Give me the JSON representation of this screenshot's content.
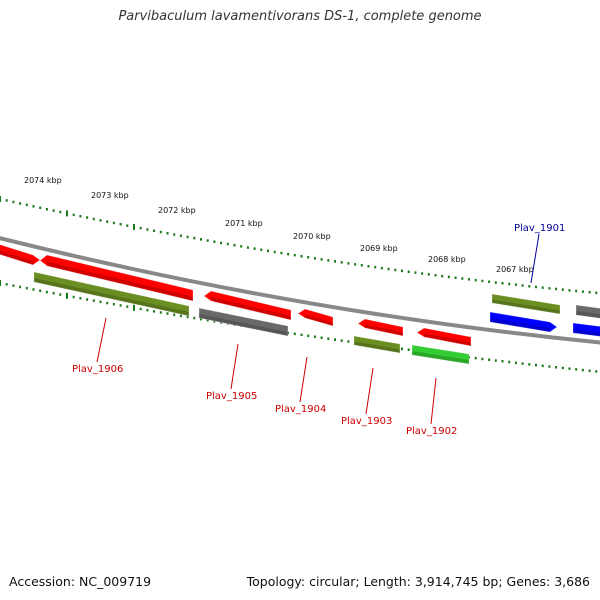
{
  "header": {
    "title": "Parvibaculum lavamentivorans DS-1, complete genome"
  },
  "footer": {
    "accession": "Accession: NC_009719",
    "summary": "Topology: circular; Length: 3,914,745 bp; Genes: 3,686"
  },
  "colors": {
    "red_gene": "#ff0000",
    "olive_gene": "#6b8e23",
    "gray_gene": "#696969",
    "blue_gene": "#0000ff",
    "green_gene": "#33cc33",
    "backbone": "#888888",
    "ticks": "#1a7a1a",
    "label_red": "#cc0000",
    "label_blue": "#000099"
  },
  "ticks": [
    {
      "label": "2074 kbp"
    },
    {
      "label": "2073 kbp"
    },
    {
      "label": "2072 kbp"
    },
    {
      "label": "2071 kbp"
    },
    {
      "label": "2070 kbp"
    },
    {
      "label": "2069 kbp"
    },
    {
      "label": "2068 kbp"
    },
    {
      "label": "2067 kbp"
    }
  ],
  "genes": [
    {
      "strand": "forward",
      "color": "red_gene"
    },
    {
      "strand": "forward",
      "color": "red_gene"
    },
    {
      "strand": "reverse",
      "color": "olive_gene"
    },
    {
      "strand": "forward",
      "color": "red_gene"
    },
    {
      "strand": "reverse",
      "color": "gray_gene"
    },
    {
      "strand": "forward",
      "color": "red_gene"
    },
    {
      "strand": "forward",
      "color": "red_gene"
    },
    {
      "strand": "reverse",
      "color": "olive_gene"
    },
    {
      "strand": "forward",
      "color": "red_gene"
    },
    {
      "strand": "reverse",
      "color": "green_gene"
    },
    {
      "strand": "forward",
      "color": "olive_gene"
    },
    {
      "strand": "reverse",
      "color": "blue_gene"
    },
    {
      "strand": "forward",
      "color": "gray_gene"
    },
    {
      "strand": "reverse",
      "color": "blue_gene"
    }
  ],
  "gene_labels": [
    {
      "text": "Plav_1906",
      "color": "label_red"
    },
    {
      "text": "Plav_1905",
      "color": "label_red"
    },
    {
      "text": "Plav_1904",
      "color": "label_red"
    },
    {
      "text": "Plav_1903",
      "color": "label_red"
    },
    {
      "text": "Plav_1902",
      "color": "label_red"
    },
    {
      "text": "Plav_1901",
      "color": "label_blue"
    }
  ]
}
